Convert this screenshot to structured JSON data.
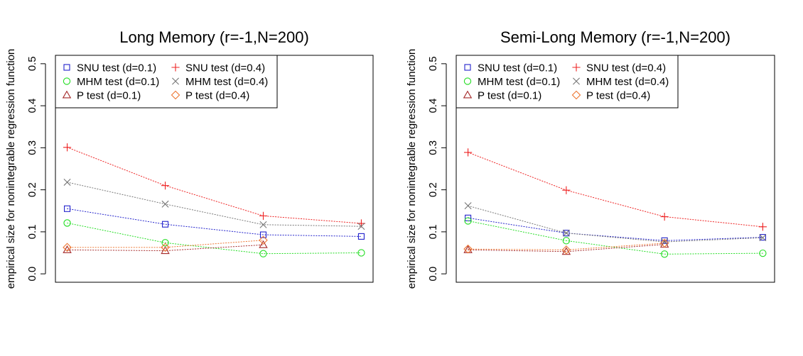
{
  "colors": {
    "SNU test (d=0.1)": "#2222cc",
    "MHM test (d=0.1)": "#22dd22",
    "P test (d=0.1)": "#a52a2a",
    "SNU test (d=0.4)": "#ee2222",
    "MHM test (d=0.4)": "#777777",
    "P test (d=0.4)": "#ee7733"
  },
  "chart_data": [
    {
      "type": "line",
      "title": "Long Memory (r=-1,N=200)",
      "xlabel": "",
      "ylabel": "empirical size for nonintegrable regression function",
      "ylim": [
        0,
        0.5
      ],
      "yticks": [
        "0.0",
        "0.1",
        "0.2",
        "0.3",
        "0.4",
        "0.5"
      ],
      "x": [
        1,
        2,
        3,
        4
      ],
      "legend_position": "top-left",
      "series": [
        {
          "name": "SNU test (d=0.1)",
          "marker": "square",
          "values": [
            0.155,
            0.118,
            0.093,
            0.089
          ]
        },
        {
          "name": "MHM test (d=0.1)",
          "marker": "circle",
          "values": [
            0.121,
            0.074,
            0.048,
            0.05
          ]
        },
        {
          "name": "P test (d=0.1)",
          "marker": "triangle",
          "values": [
            0.057,
            0.055,
            0.069,
            null
          ]
        },
        {
          "name": "SNU test (d=0.4)",
          "marker": "plus",
          "values": [
            0.301,
            0.21,
            0.138,
            0.12
          ]
        },
        {
          "name": "MHM test (d=0.4)",
          "marker": "cross",
          "values": [
            0.218,
            0.166,
            0.117,
            0.113
          ]
        },
        {
          "name": "P test (d=0.4)",
          "marker": "diamond",
          "values": [
            0.063,
            0.063,
            0.08,
            null
          ]
        }
      ]
    },
    {
      "type": "line",
      "title": "Semi-Long Memory (r=-1,N=200)",
      "xlabel": "",
      "ylabel": "empirical size for nonintegrable regression function",
      "ylim": [
        0,
        0.5
      ],
      "yticks": [
        "0.0",
        "0.1",
        "0.2",
        "0.3",
        "0.4",
        "0.5"
      ],
      "x": [
        1,
        2,
        3,
        4
      ],
      "legend_position": "top-left",
      "series": [
        {
          "name": "SNU test (d=0.1)",
          "marker": "square",
          "values": [
            0.133,
            0.097,
            0.079,
            0.087
          ]
        },
        {
          "name": "MHM test (d=0.1)",
          "marker": "circle",
          "values": [
            0.126,
            0.079,
            0.047,
            0.049
          ]
        },
        {
          "name": "P test (d=0.1)",
          "marker": "triangle",
          "values": [
            0.057,
            0.053,
            0.07,
            null
          ]
        },
        {
          "name": "SNU test (d=0.4)",
          "marker": "plus",
          "values": [
            0.289,
            0.199,
            0.136,
            0.112
          ]
        },
        {
          "name": "MHM test (d=0.4)",
          "marker": "cross",
          "values": [
            0.162,
            0.097,
            0.076,
            0.086
          ]
        },
        {
          "name": "P test (d=0.4)",
          "marker": "diamond",
          "values": [
            0.059,
            0.057,
            0.073,
            null
          ]
        }
      ]
    }
  ]
}
